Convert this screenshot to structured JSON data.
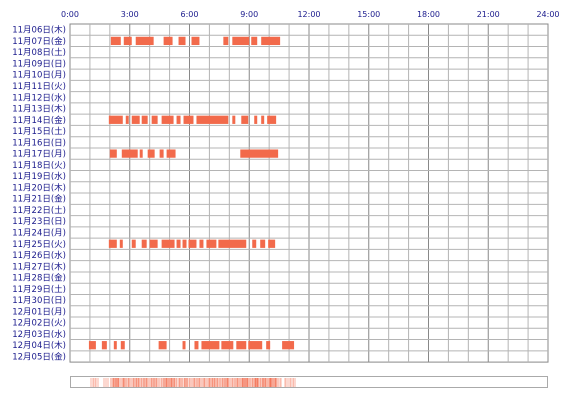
{
  "chart_data": {
    "type": "bar",
    "orientation": "horizontal",
    "title": "",
    "xlabel": "",
    "ylabel": "",
    "xlim": [
      0,
      24
    ],
    "x_tick_labels": [
      "0:00",
      "3:00",
      "6:00",
      "9:00",
      "12:00",
      "15:00",
      "18:00",
      "21:00",
      "24:00"
    ],
    "grid": true,
    "bar_color": "#f26a4b",
    "categories": [
      "11月06日(木)",
      "11月07日(金)",
      "11月08日(土)",
      "11月09日(日)",
      "11月10日(月)",
      "11月11日(火)",
      "11月12日(水)",
      "11月13日(木)",
      "11月14日(金)",
      "11月15日(土)",
      "11月16日(日)",
      "11月17日(月)",
      "11月18日(火)",
      "11月19日(水)",
      "11月20日(木)",
      "11月21日(金)",
      "11月22日(土)",
      "11月23日(日)",
      "11月24日(月)",
      "11月25日(火)",
      "11月26日(水)",
      "11月27日(木)",
      "11月28日(金)",
      "11月29日(土)",
      "11月30日(日)",
      "12月01日(月)",
      "12月02日(火)",
      "12月03日(水)",
      "12月04日(木)",
      "12月05日(金)"
    ],
    "intervals": [
      [],
      [
        [
          2.05,
          2.55
        ],
        [
          2.7,
          3.1
        ],
        [
          3.3,
          4.2
        ],
        [
          4.7,
          5.15
        ],
        [
          5.45,
          5.8
        ],
        [
          6.1,
          6.5
        ],
        [
          7.7,
          7.95
        ],
        [
          8.15,
          9.0
        ],
        [
          9.1,
          9.4
        ],
        [
          9.6,
          10.55
        ]
      ],
      [],
      [],
      [],
      [],
      [],
      [],
      [
        [
          1.95,
          2.65
        ],
        [
          2.8,
          2.95
        ],
        [
          3.1,
          3.5
        ],
        [
          3.6,
          3.9
        ],
        [
          4.1,
          4.4
        ],
        [
          4.6,
          5.2
        ],
        [
          5.35,
          5.55
        ],
        [
          5.7,
          6.2
        ],
        [
          6.35,
          7.95
        ],
        [
          8.15,
          8.3
        ],
        [
          8.6,
          8.95
        ],
        [
          9.25,
          9.4
        ],
        [
          9.6,
          9.75
        ],
        [
          9.9,
          10.35
        ]
      ],
      [],
      [],
      [
        [
          2.0,
          2.35
        ],
        [
          2.6,
          3.4
        ],
        [
          3.5,
          3.65
        ],
        [
          3.9,
          4.25
        ],
        [
          4.5,
          4.7
        ],
        [
          4.85,
          5.3
        ],
        [
          8.55,
          10.45
        ]
      ],
      [],
      [],
      [],
      [],
      [],
      [],
      [],
      [
        [
          1.95,
          2.35
        ],
        [
          2.5,
          2.65
        ],
        [
          3.1,
          3.3
        ],
        [
          3.6,
          3.85
        ],
        [
          4.0,
          4.4
        ],
        [
          4.6,
          5.25
        ],
        [
          5.35,
          5.55
        ],
        [
          5.65,
          5.85
        ],
        [
          5.95,
          6.35
        ],
        [
          6.5,
          6.7
        ],
        [
          6.85,
          7.35
        ],
        [
          7.45,
          8.85
        ],
        [
          9.15,
          9.35
        ],
        [
          9.55,
          9.8
        ],
        [
          9.95,
          10.3
        ]
      ],
      [],
      [],
      [],
      [],
      [],
      [],
      [],
      [],
      [
        [
          0.95,
          1.3
        ],
        [
          1.6,
          1.85
        ],
        [
          2.2,
          2.35
        ],
        [
          2.55,
          2.75
        ],
        [
          4.45,
          4.85
        ],
        [
          5.65,
          5.8
        ],
        [
          6.25,
          6.45
        ],
        [
          6.6,
          7.5
        ],
        [
          7.6,
          8.2
        ],
        [
          8.35,
          8.85
        ],
        [
          8.95,
          9.65
        ],
        [
          9.85,
          10.05
        ],
        [
          10.65,
          11.25
        ]
      ],
      []
    ]
  }
}
